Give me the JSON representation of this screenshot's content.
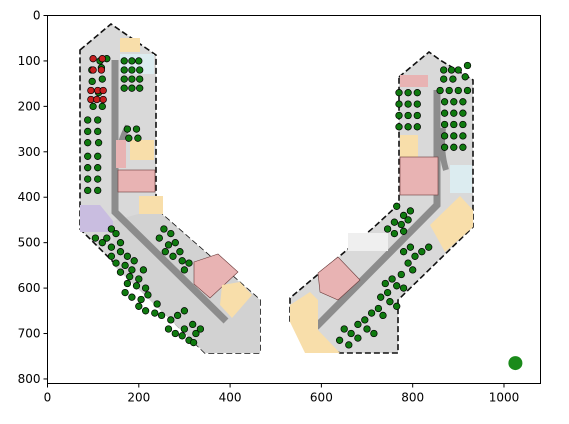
{
  "chart_data": {
    "type": "scatter",
    "xlim": [
      0,
      1080
    ],
    "ylim": [
      810,
      0
    ],
    "x_ticks": [
      "0",
      "200",
      "400",
      "600",
      "800",
      "1000"
    ],
    "y_ticks": [
      "0",
      "100",
      "200",
      "300",
      "400",
      "500",
      "600",
      "700",
      "800"
    ],
    "background": "floor-plan-image",
    "marker": {
      "x": 1025,
      "y": 765,
      "color": "#1a8a1a"
    },
    "colors": {
      "floor": "#d9d9d9",
      "corridor": "#8c8c8c",
      "room_pink": "#e8b3b3",
      "room_yellow": "#f8deaa",
      "room_purple": "#c9bde0",
      "room_blue": "#dcecf0",
      "desk_green": "#0f7a0f",
      "desk_red": "#c62020",
      "outline": "#111111"
    },
    "desks_green": [
      [
        115,
        100
      ],
      [
        97,
        120
      ],
      [
        118,
        115
      ],
      [
        130,
        95
      ],
      [
        98,
        145
      ],
      [
        120,
        140
      ],
      [
        112,
        170
      ],
      [
        100,
        200
      ],
      [
        120,
        200
      ],
      [
        88,
        230
      ],
      [
        110,
        230
      ],
      [
        88,
        255
      ],
      [
        110,
        255
      ],
      [
        88,
        280
      ],
      [
        112,
        280
      ],
      [
        88,
        310
      ],
      [
        110,
        310
      ],
      [
        88,
        335
      ],
      [
        110,
        335
      ],
      [
        88,
        360
      ],
      [
        110,
        360
      ],
      [
        88,
        385
      ],
      [
        110,
        385
      ],
      [
        168,
        100
      ],
      [
        185,
        100
      ],
      [
        200,
        100
      ],
      [
        168,
        120
      ],
      [
        185,
        120
      ],
      [
        202,
        120
      ],
      [
        168,
        140
      ],
      [
        185,
        140
      ],
      [
        202,
        140
      ],
      [
        168,
        160
      ],
      [
        185,
        160
      ],
      [
        202,
        160
      ],
      [
        175,
        250
      ],
      [
        195,
        250
      ],
      [
        178,
        270
      ],
      [
        198,
        270
      ],
      [
        140,
        470
      ],
      [
        130,
        490
      ],
      [
        150,
        480
      ],
      [
        160,
        500
      ],
      [
        140,
        510
      ],
      [
        120,
        500
      ],
      [
        105,
        490
      ],
      [
        160,
        520
      ],
      [
        175,
        530
      ],
      [
        140,
        530
      ],
      [
        150,
        545
      ],
      [
        170,
        550
      ],
      [
        185,
        560
      ],
      [
        190,
        540
      ],
      [
        160,
        565
      ],
      [
        180,
        575
      ],
      [
        200,
        580
      ],
      [
        210,
        560
      ],
      [
        175,
        590
      ],
      [
        195,
        595
      ],
      [
        215,
        600
      ],
      [
        170,
        610
      ],
      [
        185,
        620
      ],
      [
        205,
        625
      ],
      [
        220,
        615
      ],
      [
        200,
        640
      ],
      [
        215,
        650
      ],
      [
        235,
        655
      ],
      [
        240,
        635
      ],
      [
        250,
        660
      ],
      [
        270,
        670
      ],
      [
        285,
        660
      ],
      [
        300,
        650
      ],
      [
        265,
        690
      ],
      [
        280,
        700
      ],
      [
        295,
        705
      ],
      [
        310,
        715
      ],
      [
        325,
        700
      ],
      [
        335,
        690
      ],
      [
        318,
        680
      ],
      [
        300,
        690
      ],
      [
        320,
        720
      ],
      [
        245,
        490
      ],
      [
        255,
        470
      ],
      [
        270,
        480
      ],
      [
        265,
        505
      ],
      [
        280,
        500
      ],
      [
        290,
        520
      ],
      [
        275,
        530
      ],
      [
        258,
        520
      ],
      [
        295,
        540
      ],
      [
        310,
        545
      ],
      [
        300,
        560
      ],
      [
        770,
        170
      ],
      [
        790,
        170
      ],
      [
        810,
        170
      ],
      [
        770,
        195
      ],
      [
        790,
        195
      ],
      [
        810,
        195
      ],
      [
        770,
        220
      ],
      [
        790,
        220
      ],
      [
        810,
        220
      ],
      [
        770,
        245
      ],
      [
        790,
        245
      ],
      [
        810,
        245
      ],
      [
        868,
        120
      ],
      [
        885,
        120
      ],
      [
        868,
        140
      ],
      [
        888,
        140
      ],
      [
        860,
        165
      ],
      [
        880,
        165
      ],
      [
        900,
        165
      ],
      [
        920,
        165
      ],
      [
        900,
        120
      ],
      [
        915,
        135
      ],
      [
        920,
        110
      ],
      [
        870,
        190
      ],
      [
        890,
        190
      ],
      [
        910,
        190
      ],
      [
        870,
        215
      ],
      [
        890,
        215
      ],
      [
        910,
        215
      ],
      [
        870,
        240
      ],
      [
        890,
        240
      ],
      [
        910,
        240
      ],
      [
        870,
        265
      ],
      [
        890,
        265
      ],
      [
        910,
        265
      ],
      [
        870,
        290
      ],
      [
        890,
        290
      ],
      [
        910,
        290
      ],
      [
        765,
        420
      ],
      [
        780,
        440
      ],
      [
        795,
        430
      ],
      [
        760,
        455
      ],
      [
        775,
        460
      ],
      [
        790,
        450
      ],
      [
        745,
        470
      ],
      [
        760,
        480
      ],
      [
        780,
        475
      ],
      [
        795,
        510
      ],
      [
        780,
        520
      ],
      [
        805,
        530
      ],
      [
        820,
        520
      ],
      [
        835,
        510
      ],
      [
        790,
        545
      ],
      [
        800,
        560
      ],
      [
        775,
        570
      ],
      [
        755,
        580
      ],
      [
        740,
        590
      ],
      [
        765,
        595
      ],
      [
        780,
        600
      ],
      [
        745,
        610
      ],
      [
        730,
        620
      ],
      [
        750,
        630
      ],
      [
        765,
        640
      ],
      [
        725,
        645
      ],
      [
        710,
        655
      ],
      [
        735,
        660
      ],
      [
        695,
        670
      ],
      [
        680,
        680
      ],
      [
        700,
        690
      ],
      [
        715,
        700
      ],
      [
        650,
        690
      ],
      [
        665,
        700
      ],
      [
        680,
        710
      ],
      [
        640,
        715
      ],
      [
        660,
        725
      ]
    ],
    "desks_red": [
      [
        100,
        95
      ],
      [
        120,
        95
      ],
      [
        100,
        120
      ],
      [
        118,
        120
      ],
      [
        95,
        165
      ],
      [
        110,
        165
      ],
      [
        122,
        165
      ],
      [
        95,
        185
      ],
      [
        108,
        185
      ],
      [
        122,
        185
      ]
    ]
  }
}
